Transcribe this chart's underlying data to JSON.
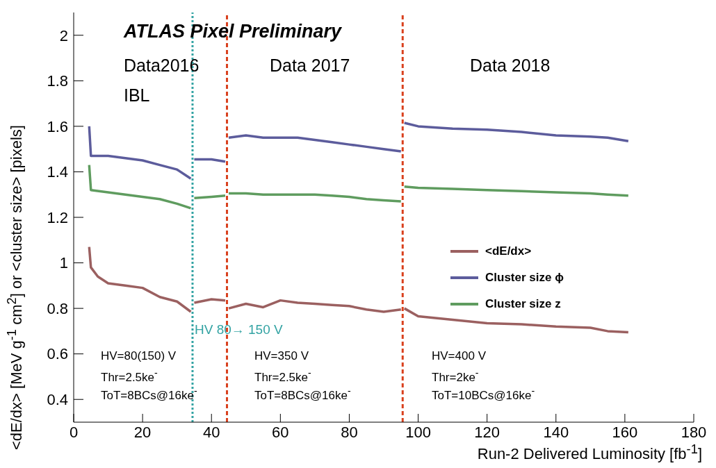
{
  "chart_data": {
    "type": "line",
    "title": "ATLAS Pixel Preliminary",
    "xlabel": "Run-2 Delivered Luminosity [fb$^{-1}$]",
    "ylabel": "<dE/dx> [MeV g$^{-1}$ cm$^{2}$] or <cluster size> [pixels]",
    "xlim": [
      0,
      180
    ],
    "xticks": [
      0,
      20,
      40,
      60,
      80,
      100,
      120,
      140,
      160,
      180
    ],
    "ylim": [
      0.3,
      2.1
    ],
    "yticks": [
      0.4,
      0.6,
      0.8,
      1,
      1.2,
      1.4,
      1.6,
      1.8,
      2
    ],
    "legend": "right",
    "marker": "none",
    "line_style": "solid",
    "series": [
      {
        "name": "<dE/dx>",
        "color": "#9b6060",
        "x": [
          4.5,
          5,
          7,
          10,
          15,
          20,
          25,
          30,
          34,
          34.6,
          35,
          40,
          44,
          44.6,
          45,
          50,
          55,
          60,
          65,
          70,
          75,
          80,
          85,
          90,
          95,
          95.6,
          96,
          100,
          110,
          120,
          130,
          140,
          150,
          155,
          161
        ],
        "values": [
          1.07,
          0.98,
          0.94,
          0.91,
          0.9,
          0.89,
          0.85,
          0.83,
          0.785,
          null,
          0.825,
          0.84,
          0.835,
          null,
          0.8,
          0.82,
          0.805,
          0.835,
          0.825,
          0.82,
          0.815,
          0.81,
          0.795,
          0.785,
          0.795,
          null,
          0.8,
          0.765,
          0.75,
          0.735,
          0.73,
          0.72,
          0.715,
          0.7,
          0.695
        ]
      },
      {
        "name": "Cluster size ϕ",
        "color": "#5c5c9c",
        "x": [
          4.5,
          5,
          10,
          15,
          20,
          25,
          30,
          34,
          34.6,
          35,
          40,
          44,
          44.6,
          45,
          50,
          55,
          60,
          65,
          70,
          75,
          80,
          85,
          90,
          95,
          95.6,
          96,
          100,
          110,
          120,
          130,
          140,
          150,
          155,
          161
        ],
        "values": [
          1.6,
          1.47,
          1.47,
          1.46,
          1.45,
          1.43,
          1.41,
          1.37,
          null,
          1.455,
          1.455,
          1.445,
          null,
          1.55,
          1.56,
          1.55,
          1.55,
          1.55,
          1.54,
          1.53,
          1.52,
          1.51,
          1.5,
          1.49,
          null,
          1.615,
          1.6,
          1.59,
          1.585,
          1.575,
          1.56,
          1.555,
          1.55,
          1.535
        ]
      },
      {
        "name": "Cluster size z",
        "color": "#5f9c5f",
        "x": [
          4.5,
          5,
          10,
          15,
          20,
          25,
          30,
          34,
          34.6,
          35,
          40,
          44,
          44.6,
          45,
          50,
          55,
          60,
          65,
          70,
          75,
          80,
          85,
          90,
          95,
          95.6,
          96,
          100,
          110,
          120,
          130,
          140,
          150,
          155,
          161
        ],
        "values": [
          1.43,
          1.32,
          1.31,
          1.3,
          1.29,
          1.28,
          1.26,
          1.24,
          null,
          1.285,
          1.29,
          1.295,
          null,
          1.305,
          1.305,
          1.3,
          1.3,
          1.3,
          1.3,
          1.295,
          1.29,
          1.28,
          1.275,
          1.27,
          null,
          1.335,
          1.33,
          1.325,
          1.32,
          1.315,
          1.31,
          1.305,
          1.3,
          1.295
        ]
      }
    ],
    "ref_lines": [
      {
        "axis": "x",
        "value": 34.5,
        "label": "HV 80→ 150 V",
        "color": "#33a3a3",
        "line_style": "dotted"
      },
      {
        "axis": "x",
        "value": 44.5,
        "label": null,
        "color": "#d9411e",
        "line_style": "dashed"
      },
      {
        "axis": "x",
        "value": 95.5,
        "label": null,
        "color": "#d9411e",
        "line_style": "dashed"
      }
    ],
    "annotations": [
      "Data2016",
      "IBL",
      "Data 2017",
      "Data 2018",
      "HV=80(150) V",
      "Thr=2.5ke$^{-}$",
      "ToT=8BCs@16ke$^{-}$",
      "HV=350 V",
      "Thr=2.5ke$^{-}$",
      "ToT=8BCs@16ke$^{-}$",
      "HV=400 V",
      "Thr=2ke$^{-}$",
      "ToT=10BCs@16ke$^{-}$"
    ]
  }
}
